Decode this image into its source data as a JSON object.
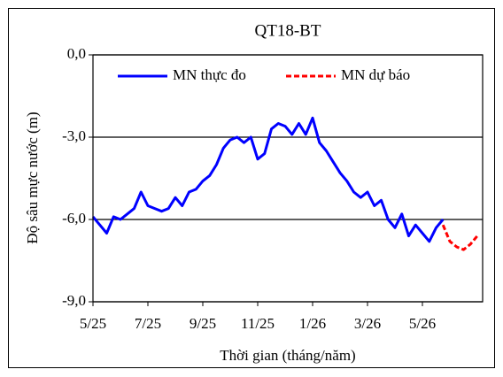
{
  "chart_data": {
    "type": "line",
    "title": "QT18-BT",
    "y_label": "Độ sâu mực nước (m)",
    "x_label": "Thời gian  (tháng/năm)",
    "categories": [
      "5/25",
      null,
      null,
      null,
      null,
      null,
      null,
      null,
      "7/25",
      null,
      null,
      null,
      null,
      null,
      null,
      null,
      "9/25",
      null,
      null,
      null,
      null,
      null,
      null,
      null,
      "11/25",
      null,
      null,
      null,
      null,
      null,
      null,
      null,
      "1/26",
      null,
      null,
      null,
      null,
      null,
      null,
      null,
      "3/26",
      null,
      null,
      null,
      null,
      null,
      null,
      null,
      "5/26",
      null,
      null,
      null,
      null,
      null,
      null,
      null,
      null
    ],
    "series": [
      {
        "name": "MN thực đo",
        "color": "#0000ff",
        "dash": false,
        "values": [
          -5.9,
          -6.2,
          -6.5,
          -5.9,
          -6.0,
          -5.8,
          -5.6,
          -5.0,
          -5.5,
          -5.6,
          -5.7,
          -5.6,
          -5.2,
          -5.5,
          -5.0,
          -4.9,
          -4.6,
          -4.4,
          -4.0,
          -3.4,
          -3.1,
          -3.0,
          -3.2,
          -3.0,
          -3.8,
          -3.6,
          -2.7,
          -2.5,
          -2.6,
          -2.9,
          -2.5,
          -2.9,
          -2.3,
          -3.2,
          -3.5,
          -3.9,
          -4.3,
          -4.6,
          -5.0,
          -5.2,
          -5.0,
          -5.5,
          -5.3,
          -6.0,
          -6.3,
          -5.8,
          -6.6,
          -6.2,
          -6.5,
          -6.8,
          -6.3,
          -6.0,
          null,
          null,
          null,
          null,
          null
        ]
      },
      {
        "name": "MN dự báo",
        "color": "#ff0000",
        "dash": true,
        "values": [
          null,
          null,
          null,
          null,
          null,
          null,
          null,
          null,
          null,
          null,
          null,
          null,
          null,
          null,
          null,
          null,
          null,
          null,
          null,
          null,
          null,
          null,
          null,
          null,
          null,
          null,
          null,
          null,
          null,
          null,
          null,
          null,
          null,
          null,
          null,
          null,
          null,
          null,
          null,
          null,
          null,
          null,
          null,
          null,
          null,
          null,
          null,
          null,
          null,
          null,
          null,
          -6.2,
          -6.8,
          -7.0,
          -7.1,
          -6.9,
          -6.6
        ]
      }
    ],
    "ylim": [
      -9,
      0
    ],
    "yticks": [
      {
        "value": 0,
        "label": "0,0"
      },
      {
        "value": -3,
        "label": "-3,0"
      },
      {
        "value": -6,
        "label": "-6,0"
      },
      {
        "value": -9,
        "label": "-9,0"
      }
    ],
    "grid": true,
    "legend": "top"
  }
}
